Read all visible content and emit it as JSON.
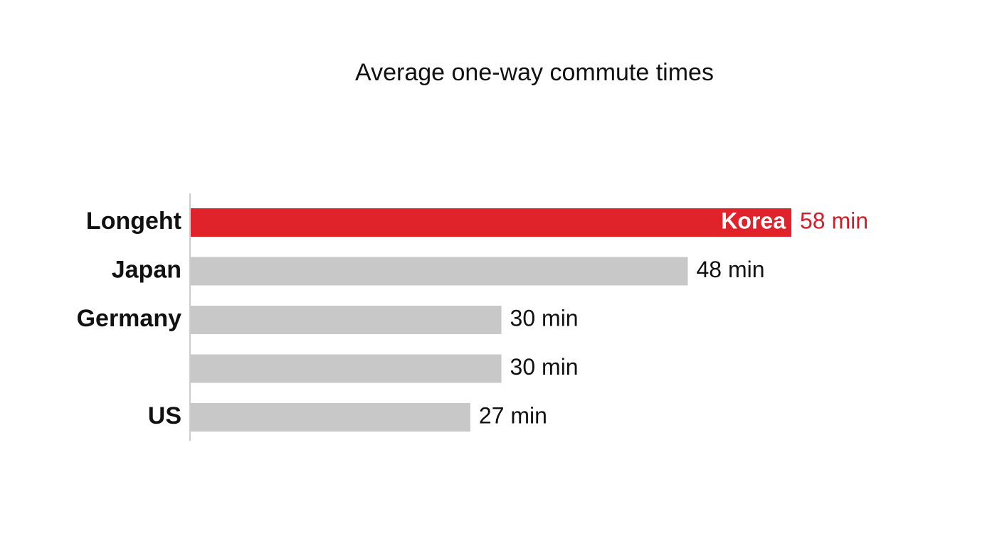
{
  "chart_data": {
    "type": "bar",
    "orientation": "horizontal",
    "title": "Average one-way commute times",
    "categories": [
      "Longeht",
      "Japan",
      "Germany",
      null,
      "US"
    ],
    "values": [
      58,
      48,
      30,
      30,
      27
    ],
    "value_labels": [
      "58 min",
      "48 min",
      "30 min",
      "30 min",
      "27 min"
    ],
    "inner_labels": [
      "Korea",
      null,
      null,
      null,
      null
    ],
    "colors": [
      "#e0232b",
      "#c8c8c8",
      "#c8c8c8",
      "#c8c8c8",
      "#c8c8c8"
    ],
    "value_label_colors": [
      "#d11f2a",
      "#111111",
      "#111111",
      "#111111",
      "#111111"
    ]
  }
}
